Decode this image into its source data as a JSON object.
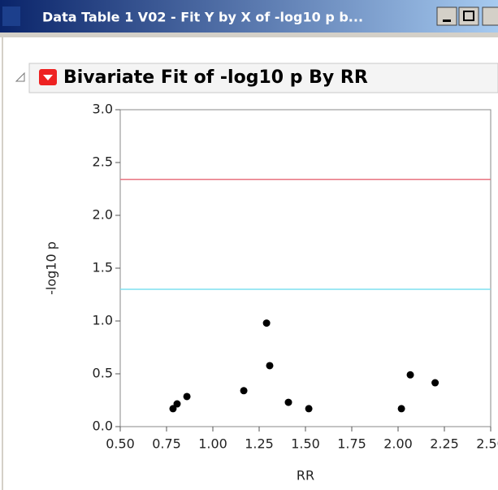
{
  "window": {
    "title": "Data Table 1 V02 - Fit Y by X of -log10 p b..."
  },
  "chart_data": {
    "type": "scatter",
    "title": "Bivariate Fit of -log10 p By RR",
    "xlabel": "RR",
    "ylabel": "-log10 p",
    "x": [
      0.785,
      0.807,
      0.86,
      1.167,
      1.29,
      1.307,
      1.408,
      1.518,
      2.018,
      2.066,
      2.2
    ],
    "series": [
      {
        "color": "#000000",
        "values": [
          0.17,
          0.215,
          0.285,
          0.34,
          0.98,
          0.577,
          0.23,
          0.17,
          0.17,
          0.49,
          0.415
        ]
      }
    ],
    "reference_lines": [
      {
        "value": 2.34,
        "color": "#e8737f"
      },
      {
        "value": 1.3,
        "color": "#7fe0f0"
      }
    ],
    "xlim": [
      0.5,
      2.5
    ],
    "ylim": [
      0,
      3
    ],
    "xticks": [
      {
        "value": 0.5,
        "label": "0.50"
      },
      0.75,
      {
        "value": 1,
        "label": "1.00"
      },
      1.25,
      {
        "value": 1.5,
        "label": "1.50"
      },
      1.75,
      {
        "value": 2,
        "label": "2.00"
      },
      2.25,
      {
        "value": 2.5,
        "label": "2.50"
      }
    ],
    "yticks": [
      {
        "value": 0,
        "label": "0.0"
      },
      0.5,
      {
        "value": 1,
        "label": "1.0"
      },
      1.5,
      {
        "value": 2,
        "label": "2.0"
      },
      2.5,
      {
        "value": 3,
        "label": "3.0"
      }
    ]
  }
}
